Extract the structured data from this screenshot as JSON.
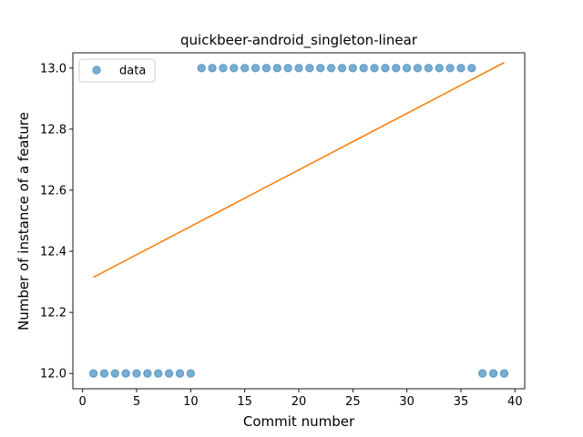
{
  "chart_data": {
    "type": "scatter",
    "title": "quickbeer-android_singleton-linear",
    "xlabel": "Commit number",
    "ylabel": "Number of instance of a feature",
    "xlim": [
      -0.9,
      40.9
    ],
    "ylim": [
      11.95,
      13.05
    ],
    "xticks": [
      0,
      5,
      10,
      15,
      20,
      25,
      30,
      35,
      40
    ],
    "xtick_labels": [
      "0",
      "5",
      "10",
      "15",
      "20",
      "25",
      "30",
      "35",
      "40"
    ],
    "yticks": [
      12.0,
      12.2,
      12.4,
      12.6,
      12.8,
      13.0
    ],
    "ytick_labels": [
      "12.0",
      "12.2",
      "12.4",
      "12.6",
      "12.8",
      "13.0"
    ],
    "grid": false,
    "legend_position": "top-left",
    "colors": {
      "points": "#1f77b4",
      "fit": "#ff7f0e"
    },
    "series": [
      {
        "name": "data",
        "kind": "scatter",
        "x": [
          1,
          2,
          3,
          4,
          5,
          6,
          7,
          8,
          9,
          10,
          11,
          12,
          13,
          14,
          15,
          16,
          17,
          18,
          19,
          20,
          21,
          22,
          23,
          24,
          25,
          26,
          27,
          28,
          29,
          30,
          31,
          32,
          33,
          34,
          35,
          36,
          37,
          38,
          39
        ],
        "y": [
          12,
          12,
          12,
          12,
          12,
          12,
          12,
          12,
          12,
          12,
          13,
          13,
          13,
          13,
          13,
          13,
          13,
          13,
          13,
          13,
          13,
          13,
          13,
          13,
          13,
          13,
          13,
          13,
          13,
          13,
          13,
          13,
          13,
          13,
          13,
          13,
          12,
          12,
          12
        ]
      },
      {
        "kind": "line",
        "x": [
          1,
          39
        ],
        "y": [
          12.315,
          13.018
        ]
      }
    ]
  }
}
